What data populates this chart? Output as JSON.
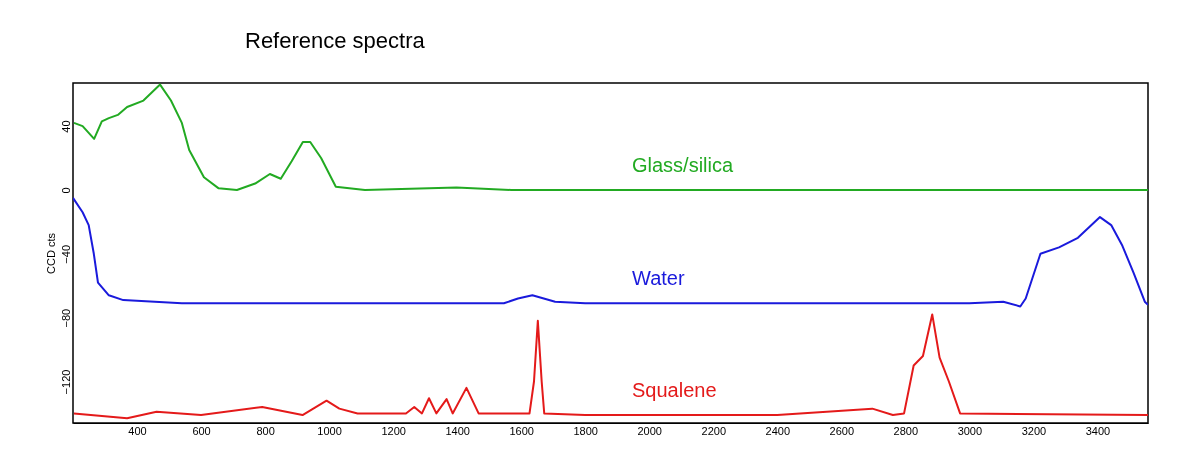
{
  "chart_data": {
    "type": "line",
    "title": "Reference spectra",
    "ylabel": "CCD cts",
    "xlim": [
      200,
      3558
    ],
    "ylim": [
      -146,
      67
    ],
    "xticks": [
      400,
      600,
      800,
      1000,
      1200,
      1400,
      1600,
      1800,
      2000,
      2200,
      2400,
      2600,
      2800,
      3000,
      3200,
      3400
    ],
    "yticks": [
      40,
      0,
      -40,
      -80,
      -120
    ],
    "grid": false,
    "marker": "none",
    "line_style": "solid",
    "series": [
      {
        "name": "Glass/silica",
        "color": "#22aa22",
        "x": [
          203,
          230,
          266,
          290,
          312,
          340,
          369,
          420,
          472,
          506,
          540,
          563,
          609,
          655,
          712,
          769,
          815,
          849,
          883,
          918,
          941,
          975,
          1021,
          1112,
          1398,
          1569,
          2000,
          2500,
          3000,
          3558
        ],
        "values": [
          42,
          40,
          32,
          43,
          45,
          47,
          52,
          56,
          66,
          56,
          42,
          25,
          8,
          1,
          0,
          4,
          10,
          7,
          18,
          30,
          30,
          20,
          2,
          0,
          1.5,
          0,
          0,
          0,
          0,
          0
        ]
      },
      {
        "name": "Water",
        "color": "#1a1adc",
        "x": [
          200,
          230,
          249,
          265,
          278,
          312,
          357,
          540,
          1000,
          1546,
          1590,
          1635,
          1706,
          1800,
          2200,
          2600,
          3000,
          3106,
          3159,
          3176,
          3222,
          3280,
          3339,
          3408,
          3443,
          3478,
          3513,
          3548,
          3558
        ],
        "values": [
          -5,
          -14,
          -22,
          -40,
          -58,
          -66,
          -69,
          -71,
          -71,
          -71,
          -68,
          -66,
          -70,
          -71,
          -71,
          -71,
          -71,
          -70,
          -73,
          -68,
          -40,
          -36,
          -30,
          -17,
          -22,
          -35,
          -52,
          -70,
          -72
        ]
      },
      {
        "name": "Squalene",
        "color": "#e41a1a",
        "x": [
          203,
          369,
          461,
          600,
          791,
          917,
          992,
          1032,
          1089,
          1240,
          1266,
          1290,
          1312,
          1335,
          1367,
          1386,
          1429,
          1467,
          1626,
          1640,
          1652,
          1664,
          1672,
          1800,
          2400,
          2697,
          2761,
          2796,
          2826,
          2855,
          2884,
          2907,
          2936,
          2971,
          3558
        ],
        "values": [
          -140,
          -143,
          -139,
          -141,
          -136,
          -141,
          -132,
          -137,
          -140,
          -140,
          -136,
          -140,
          -130.5,
          -140,
          -131,
          -140,
          -124,
          -140,
          -140,
          -120,
          -82,
          -120,
          -140,
          -141,
          -141,
          -137,
          -141,
          -140,
          -110,
          -104,
          -78,
          -105,
          -120,
          -140,
          -141
        ]
      }
    ]
  }
}
